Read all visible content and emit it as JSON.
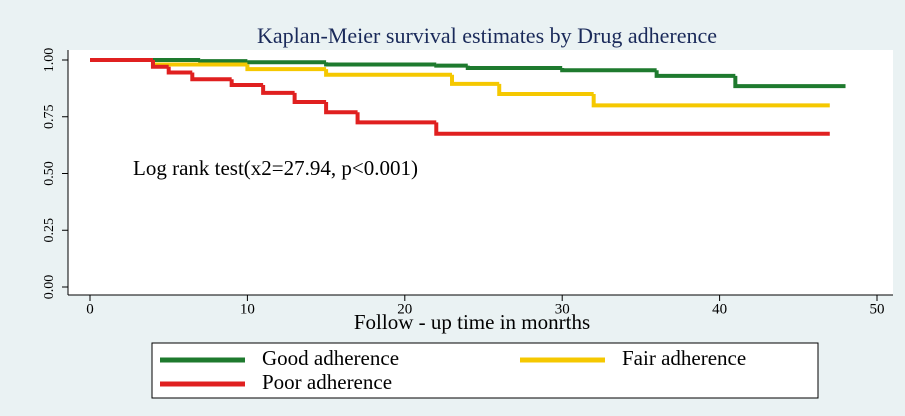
{
  "chart_data": {
    "type": "km_step",
    "title": "Kaplan-Meier survival estimates by Drug adherence",
    "annotation": "Log rank test(x2=27.94, p<0.001)",
    "x_label": "Follow - up  time in monrths",
    "xlim": [
      0,
      50
    ],
    "xticks": [
      0,
      10,
      20,
      30,
      40,
      50
    ],
    "ylim": [
      0,
      1
    ],
    "yticks": [
      {
        "value": 0,
        "label": "0.00"
      },
      {
        "value": 0.25,
        "label": "0.25"
      },
      {
        "value": 0.5,
        "label": "0.50"
      },
      {
        "value": 0.75,
        "label": "0.75"
      },
      {
        "value": 1,
        "label": "1.00"
      }
    ],
    "series": [
      {
        "name": "Good adherence",
        "color": "#1e7a2e",
        "x": [
          0,
          7,
          10,
          15,
          22,
          24,
          30,
          36,
          41,
          48
        ],
        "values": [
          1,
          0.995,
          0.99,
          0.98,
          0.975,
          0.965,
          0.955,
          0.93,
          0.885,
          0.885
        ]
      },
      {
        "name": "Fair adherence",
        "color": "#f5c800",
        "x": [
          0,
          4,
          10,
          15,
          23,
          26,
          32,
          47
        ],
        "values": [
          1,
          0.98,
          0.96,
          0.935,
          0.895,
          0.85,
          0.8,
          0.8
        ]
      },
      {
        "name": "Poor adherence",
        "color": "#e02020",
        "x": [
          0,
          4,
          5,
          6.5,
          9,
          11,
          13,
          15,
          17,
          22,
          47
        ],
        "values": [
          1,
          0.97,
          0.945,
          0.915,
          0.89,
          0.855,
          0.815,
          0.77,
          0.725,
          0.675,
          0.675
        ]
      }
    ]
  }
}
